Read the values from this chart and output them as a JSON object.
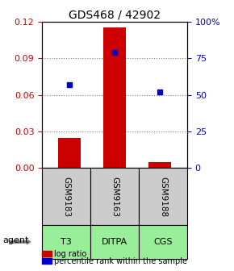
{
  "title": "GDS468 / 42902",
  "samples": [
    "GSM9183",
    "GSM9163",
    "GSM9188"
  ],
  "agents": [
    "T3",
    "DITPA",
    "CGS"
  ],
  "log_ratio": [
    0.025,
    0.115,
    0.005
  ],
  "percentile_pct": [
    57,
    79,
    52
  ],
  "left_ylim": [
    0,
    0.12
  ],
  "right_ylim": [
    0,
    100
  ],
  "left_yticks": [
    0,
    0.03,
    0.06,
    0.09,
    0.12
  ],
  "right_yticks": [
    0,
    25,
    50,
    75,
    100
  ],
  "right_yticklabels": [
    "0",
    "25",
    "50",
    "75",
    "100%"
  ],
  "left_color": "#cc0000",
  "right_color": "#0000cc",
  "bar_color": "#cc0000",
  "marker_color": "#0000cc",
  "agent_bg_color": "#99ee99",
  "sample_bg_color": "#cccccc",
  "title_fontsize": 10,
  "tick_fontsize": 8,
  "label_fontsize": 7,
  "bar_width": 0.5,
  "x_positions": [
    0,
    1,
    2
  ]
}
